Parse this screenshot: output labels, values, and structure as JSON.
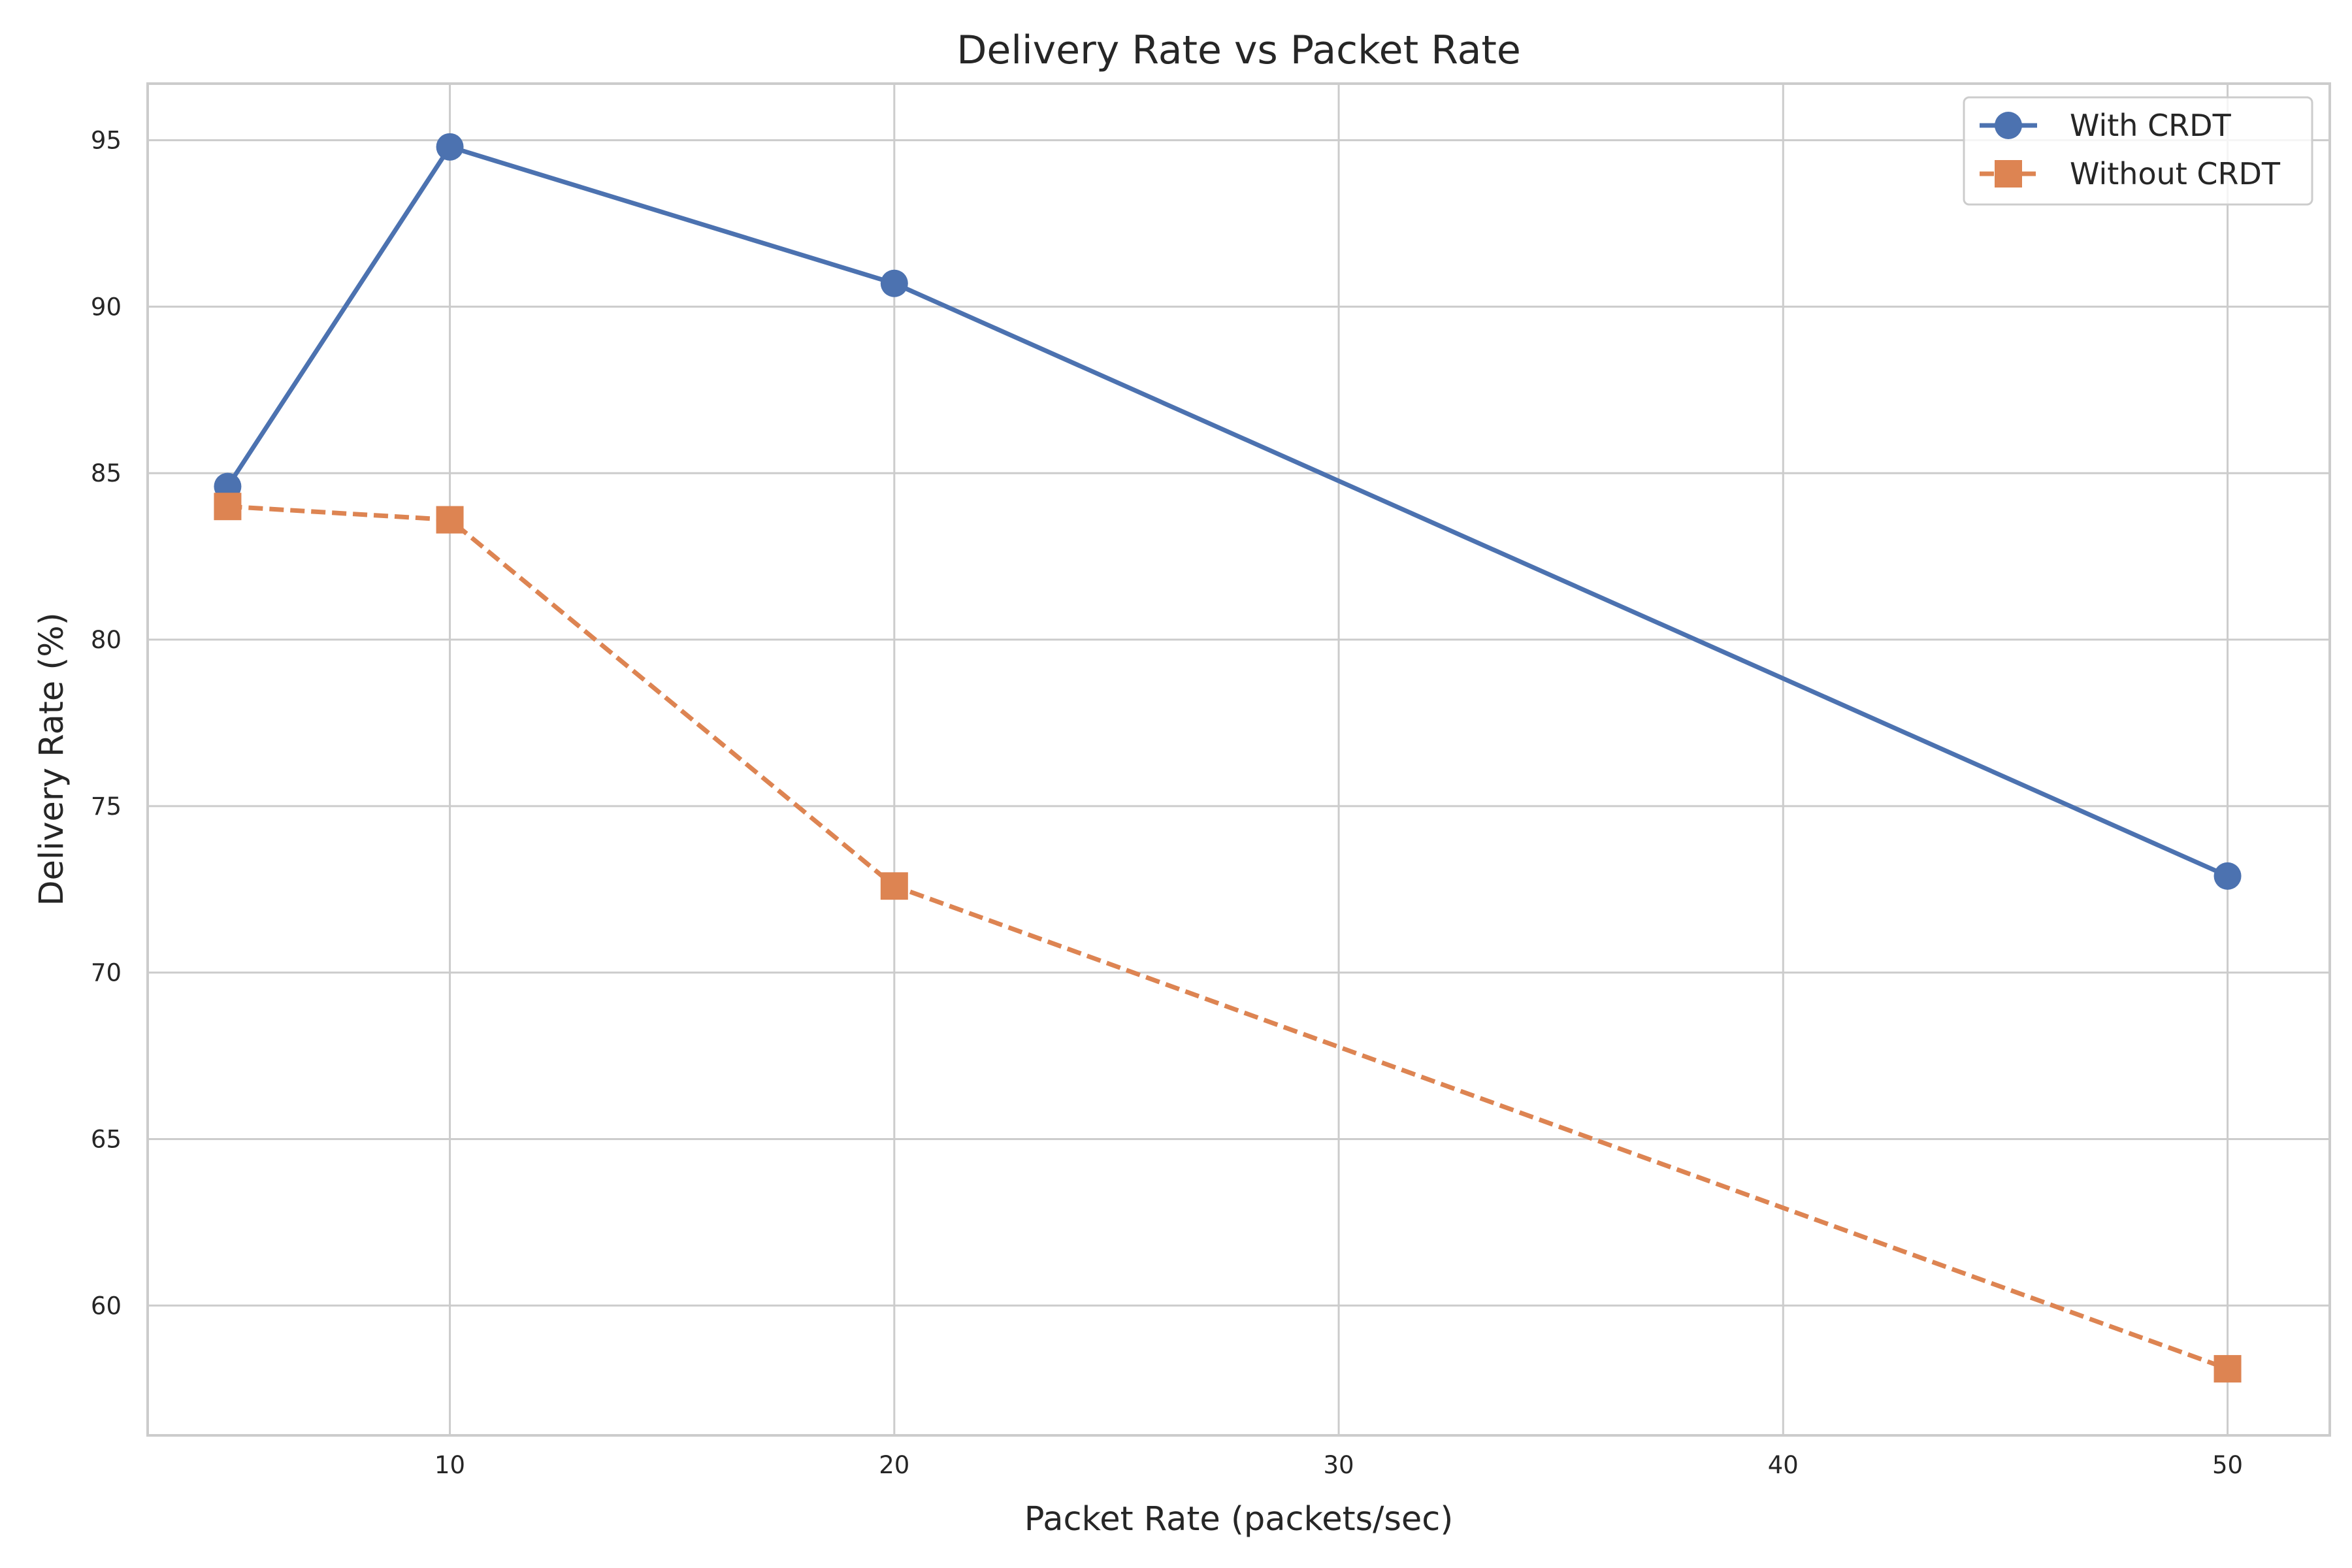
{
  "chart_data": {
    "type": "line",
    "title": "Delivery Rate vs Packet Rate",
    "xlabel": "Packet Rate (packets/sec)",
    "ylabel": "Delivery Rate (%)",
    "x": [
      5,
      10,
      20,
      50
    ],
    "xlim": [
      3.2,
      52.3
    ],
    "ylim": [
      56.1,
      96.7
    ],
    "xticks": [
      10,
      20,
      30,
      40,
      50
    ],
    "yticks": [
      60,
      65,
      70,
      75,
      80,
      85,
      90,
      95
    ],
    "grid": true,
    "legend_position": "top-right",
    "series": [
      {
        "name": "With CRDT",
        "values": [
          84.6,
          94.8,
          90.7,
          72.9
        ],
        "color": "#4c72b0",
        "line_style": "solid",
        "marker": "circle"
      },
      {
        "name": "Without CRDT",
        "values": [
          84.0,
          83.6,
          72.6,
          58.1
        ],
        "color": "#dd8452",
        "line_style": "dashed",
        "marker": "square"
      }
    ]
  }
}
